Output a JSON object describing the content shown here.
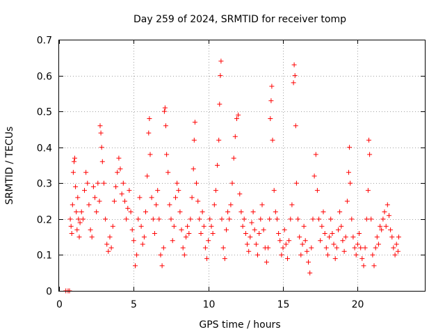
{
  "chart_data": {
    "type": "scatter",
    "title": "Day 259 of 2024, SRMTID for receiver tomp",
    "xlabel": "GPS time / hours",
    "ylabel": "SRMTID / TECUs",
    "xlim": [
      0,
      24.5
    ],
    "ylim": [
      0,
      0.7
    ],
    "xticks": [
      0,
      5,
      10,
      15,
      20
    ],
    "xtick_labels": [
      "0",
      "5",
      "10",
      "15",
      "20"
    ],
    "yticks": [
      0,
      0.1,
      0.2,
      0.3,
      0.4,
      0.5,
      0.6,
      0.7
    ],
    "ytick_labels": [
      "0",
      "0.1",
      "0.2",
      "0.3",
      "0.4",
      "0.5",
      "0.6",
      "0.7"
    ],
    "grid": true,
    "marker": "+",
    "series": [
      {
        "name": "SRMTID",
        "color": "#ff0000",
        "points": [
          [
            0.45,
            0.0
          ],
          [
            0.6,
            0.0
          ],
          [
            0.7,
            0.0
          ],
          [
            0.75,
            0.2
          ],
          [
            0.8,
            0.18
          ],
          [
            0.85,
            0.16
          ],
          [
            0.9,
            0.24
          ],
          [
            0.95,
            0.33
          ],
          [
            1.0,
            0.36
          ],
          [
            1.05,
            0.37
          ],
          [
            1.1,
            0.29
          ],
          [
            1.15,
            0.22
          ],
          [
            1.2,
            0.17
          ],
          [
            1.25,
            0.26
          ],
          [
            1.3,
            0.2
          ],
          [
            1.35,
            0.15
          ],
          [
            1.4,
            0.19
          ],
          [
            1.5,
            0.22
          ],
          [
            1.6,
            0.2
          ],
          [
            1.7,
            0.28
          ],
          [
            1.8,
            0.33
          ],
          [
            1.9,
            0.3
          ],
          [
            2.0,
            0.24
          ],
          [
            2.1,
            0.17
          ],
          [
            2.2,
            0.15
          ],
          [
            2.3,
            0.29
          ],
          [
            2.4,
            0.26
          ],
          [
            2.5,
            0.22
          ],
          [
            2.6,
            0.3
          ],
          [
            2.7,
            0.25
          ],
          [
            2.75,
            0.46
          ],
          [
            2.8,
            0.44
          ],
          [
            2.85,
            0.4
          ],
          [
            2.9,
            0.36
          ],
          [
            3.0,
            0.3
          ],
          [
            3.1,
            0.2
          ],
          [
            3.2,
            0.13
          ],
          [
            3.3,
            0.11
          ],
          [
            3.4,
            0.15
          ],
          [
            3.5,
            0.12
          ],
          [
            3.6,
            0.18
          ],
          [
            3.7,
            0.25
          ],
          [
            3.8,
            0.29
          ],
          [
            3.9,
            0.33
          ],
          [
            4.0,
            0.37
          ],
          [
            4.1,
            0.34
          ],
          [
            4.2,
            0.27
          ],
          [
            4.3,
            0.3
          ],
          [
            4.4,
            0.25
          ],
          [
            4.5,
            0.2
          ],
          [
            4.6,
            0.23
          ],
          [
            4.7,
            0.28
          ],
          [
            4.8,
            0.22
          ],
          [
            4.9,
            0.17
          ],
          [
            5.0,
            0.14
          ],
          [
            5.1,
            0.07
          ],
          [
            5.2,
            0.1
          ],
          [
            5.3,
            0.2
          ],
          [
            5.4,
            0.26
          ],
          [
            5.5,
            0.18
          ],
          [
            5.6,
            0.13
          ],
          [
            5.7,
            0.15
          ],
          [
            5.8,
            0.22
          ],
          [
            5.9,
            0.32
          ],
          [
            6.0,
            0.44
          ],
          [
            6.05,
            0.48
          ],
          [
            6.1,
            0.38
          ],
          [
            6.2,
            0.26
          ],
          [
            6.3,
            0.2
          ],
          [
            6.4,
            0.16
          ],
          [
            6.5,
            0.24
          ],
          [
            6.6,
            0.28
          ],
          [
            6.7,
            0.2
          ],
          [
            6.8,
            0.1
          ],
          [
            6.9,
            0.07
          ],
          [
            7.0,
            0.12
          ],
          [
            7.05,
            0.5
          ],
          [
            7.1,
            0.51
          ],
          [
            7.15,
            0.46
          ],
          [
            7.2,
            0.38
          ],
          [
            7.3,
            0.33
          ],
          [
            7.4,
            0.24
          ],
          [
            7.5,
            0.2
          ],
          [
            7.6,
            0.14
          ],
          [
            7.7,
            0.18
          ],
          [
            7.8,
            0.26
          ],
          [
            7.9,
            0.3
          ],
          [
            8.0,
            0.28
          ],
          [
            8.1,
            0.22
          ],
          [
            8.2,
            0.17
          ],
          [
            8.3,
            0.12
          ],
          [
            8.4,
            0.1
          ],
          [
            8.5,
            0.15
          ],
          [
            8.6,
            0.18
          ],
          [
            8.7,
            0.16
          ],
          [
            8.8,
            0.2
          ],
          [
            8.9,
            0.26
          ],
          [
            9.0,
            0.34
          ],
          [
            9.05,
            0.42
          ],
          [
            9.1,
            0.47
          ],
          [
            9.2,
            0.3
          ],
          [
            9.3,
            0.25
          ],
          [
            9.4,
            0.2
          ],
          [
            9.5,
            0.16
          ],
          [
            9.6,
            0.22
          ],
          [
            9.7,
            0.18
          ],
          [
            9.8,
            0.12
          ],
          [
            9.9,
            0.09
          ],
          [
            10.0,
            0.14
          ],
          [
            10.1,
            0.2
          ],
          [
            10.2,
            0.18
          ],
          [
            10.3,
            0.16
          ],
          [
            10.4,
            0.24
          ],
          [
            10.5,
            0.28
          ],
          [
            10.6,
            0.35
          ],
          [
            10.7,
            0.42
          ],
          [
            10.75,
            0.52
          ],
          [
            10.8,
            0.6
          ],
          [
            10.85,
            0.64
          ],
          [
            10.9,
            0.2
          ],
          [
            11.0,
            0.12
          ],
          [
            11.1,
            0.09
          ],
          [
            11.2,
            0.17
          ],
          [
            11.3,
            0.22
          ],
          [
            11.4,
            0.2
          ],
          [
            11.5,
            0.24
          ],
          [
            11.6,
            0.3
          ],
          [
            11.7,
            0.37
          ],
          [
            11.8,
            0.43
          ],
          [
            11.9,
            0.48
          ],
          [
            12.0,
            0.49
          ],
          [
            12.1,
            0.27
          ],
          [
            12.2,
            0.22
          ],
          [
            12.3,
            0.18
          ],
          [
            12.4,
            0.2
          ],
          [
            12.5,
            0.16
          ],
          [
            12.6,
            0.13
          ],
          [
            12.7,
            0.11
          ],
          [
            12.8,
            0.15
          ],
          [
            12.9,
            0.19
          ],
          [
            13.0,
            0.22
          ],
          [
            13.1,
            0.17
          ],
          [
            13.2,
            0.13
          ],
          [
            13.3,
            0.1
          ],
          [
            13.4,
            0.16
          ],
          [
            13.5,
            0.2
          ],
          [
            13.6,
            0.24
          ],
          [
            13.7,
            0.17
          ],
          [
            13.8,
            0.12
          ],
          [
            13.9,
            0.08
          ],
          [
            14.0,
            0.12
          ],
          [
            14.1,
            0.2
          ],
          [
            14.15,
            0.48
          ],
          [
            14.2,
            0.53
          ],
          [
            14.25,
            0.57
          ],
          [
            14.3,
            0.42
          ],
          [
            14.4,
            0.28
          ],
          [
            14.5,
            0.22
          ],
          [
            14.6,
            0.2
          ],
          [
            14.7,
            0.16
          ],
          [
            14.8,
            0.14
          ],
          [
            14.9,
            0.1
          ],
          [
            15.0,
            0.12
          ],
          [
            15.1,
            0.17
          ],
          [
            15.2,
            0.13
          ],
          [
            15.3,
            0.09
          ],
          [
            15.4,
            0.14
          ],
          [
            15.5,
            0.2
          ],
          [
            15.6,
            0.24
          ],
          [
            15.7,
            0.58
          ],
          [
            15.75,
            0.63
          ],
          [
            15.8,
            0.6
          ],
          [
            15.85,
            0.46
          ],
          [
            15.9,
            0.3
          ],
          [
            16.0,
            0.2
          ],
          [
            16.1,
            0.15
          ],
          [
            16.2,
            0.1
          ],
          [
            16.3,
            0.13
          ],
          [
            16.4,
            0.18
          ],
          [
            16.5,
            0.14
          ],
          [
            16.6,
            0.11
          ],
          [
            16.7,
            0.08
          ],
          [
            16.8,
            0.05
          ],
          [
            16.9,
            0.12
          ],
          [
            17.0,
            0.2
          ],
          [
            17.1,
            0.32
          ],
          [
            17.2,
            0.38
          ],
          [
            17.3,
            0.28
          ],
          [
            17.4,
            0.2
          ],
          [
            17.5,
            0.14
          ],
          [
            17.6,
            0.18
          ],
          [
            17.7,
            0.22
          ],
          [
            17.8,
            0.16
          ],
          [
            17.9,
            0.12
          ],
          [
            18.0,
            0.1
          ],
          [
            18.1,
            0.15
          ],
          [
            18.2,
            0.2
          ],
          [
            18.3,
            0.16
          ],
          [
            18.4,
            0.13
          ],
          [
            18.5,
            0.09
          ],
          [
            18.6,
            0.12
          ],
          [
            18.7,
            0.17
          ],
          [
            18.8,
            0.22
          ],
          [
            18.9,
            0.18
          ],
          [
            19.0,
            0.14
          ],
          [
            19.1,
            0.11
          ],
          [
            19.2,
            0.15
          ],
          [
            19.3,
            0.25
          ],
          [
            19.4,
            0.33
          ],
          [
            19.45,
            0.4
          ],
          [
            19.5,
            0.3
          ],
          [
            19.6,
            0.2
          ],
          [
            19.7,
            0.15
          ],
          [
            19.8,
            0.12
          ],
          [
            19.9,
            0.1
          ],
          [
            20.0,
            0.13
          ],
          [
            20.1,
            0.16
          ],
          [
            20.2,
            0.12
          ],
          [
            20.3,
            0.09
          ],
          [
            20.4,
            0.07
          ],
          [
            20.5,
            0.12
          ],
          [
            20.6,
            0.2
          ],
          [
            20.7,
            0.28
          ],
          [
            20.75,
            0.42
          ],
          [
            20.8,
            0.38
          ],
          [
            20.9,
            0.2
          ],
          [
            21.0,
            0.1
          ],
          [
            21.1,
            0.07
          ],
          [
            21.2,
            0.12
          ],
          [
            21.3,
            0.15
          ],
          [
            21.4,
            0.13
          ],
          [
            21.5,
            0.18
          ],
          [
            21.6,
            0.17
          ],
          [
            21.7,
            0.2
          ],
          [
            21.8,
            0.22
          ],
          [
            21.9,
            0.18
          ],
          [
            22.0,
            0.24
          ],
          [
            22.1,
            0.21
          ],
          [
            22.2,
            0.17
          ],
          [
            22.3,
            0.15
          ],
          [
            22.4,
            0.12
          ],
          [
            22.5,
            0.1
          ],
          [
            22.6,
            0.13
          ],
          [
            22.7,
            0.11
          ],
          [
            22.75,
            0.15
          ]
        ]
      }
    ]
  }
}
